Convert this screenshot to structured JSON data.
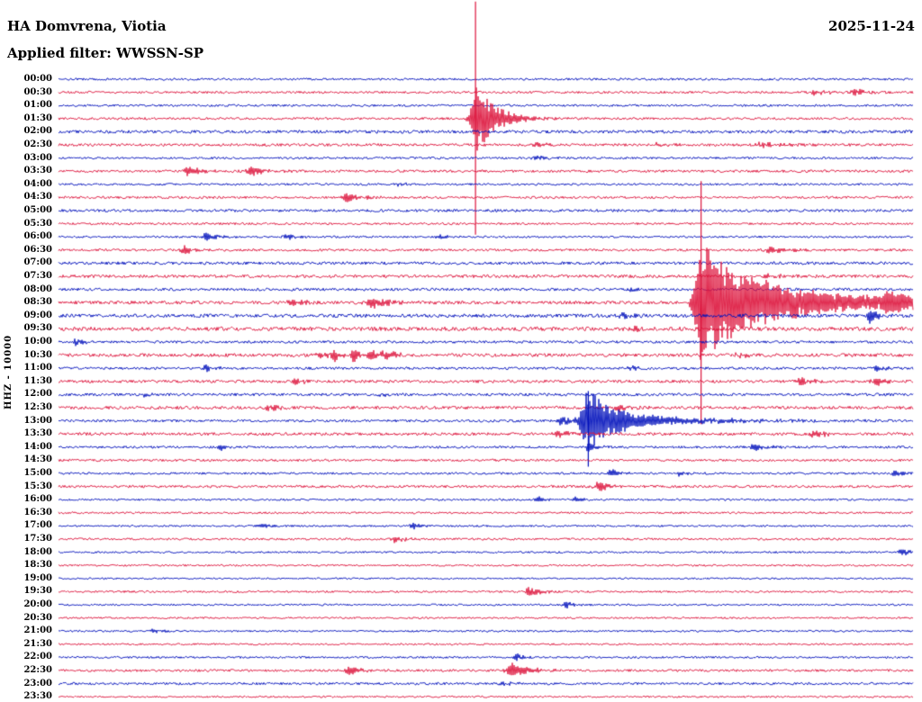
{
  "header": {
    "station_line": "HA Domvrena, Viotia",
    "date": "2025-11-24",
    "filter_line": "Applied filter: WWSSN-SP"
  },
  "chart_data": {
    "type": "line",
    "variant": "helicorder-seismogram",
    "title": "HA Domvrena, Viotia",
    "date": "2025-11-24",
    "filter": "WWSSN-SP",
    "ylabel": "HHZ - 10000",
    "minutes_per_row": 30,
    "grid": false,
    "legend": false,
    "colors": {
      "blue": "#0011bb",
      "red": "#dc143c",
      "text": "#000000"
    },
    "rows": [
      {
        "time": "00:00",
        "color": "blue",
        "noise": 1.2
      },
      {
        "time": "00:30",
        "color": "red",
        "noise": 1.3
      },
      {
        "time": "01:00",
        "color": "blue",
        "noise": 1.2
      },
      {
        "time": "01:30",
        "color": "red",
        "noise": 1.3
      },
      {
        "time": "02:00",
        "color": "blue",
        "noise": 1.7
      },
      {
        "time": "02:30",
        "color": "red",
        "noise": 1.5
      },
      {
        "time": "03:00",
        "color": "blue",
        "noise": 1.2
      },
      {
        "time": "03:30",
        "color": "red",
        "noise": 1.4
      },
      {
        "time": "04:00",
        "color": "blue",
        "noise": 1.2
      },
      {
        "time": "04:30",
        "color": "red",
        "noise": 1.3
      },
      {
        "time": "05:00",
        "color": "blue",
        "noise": 1.5
      },
      {
        "time": "05:30",
        "color": "red",
        "noise": 1.2
      },
      {
        "time": "06:00",
        "color": "blue",
        "noise": 1.1
      },
      {
        "time": "06:30",
        "color": "red",
        "noise": 1.3
      },
      {
        "time": "07:00",
        "color": "blue",
        "noise": 1.6
      },
      {
        "time": "07:30",
        "color": "red",
        "noise": 1.7
      },
      {
        "time": "08:00",
        "color": "blue",
        "noise": 1.5
      },
      {
        "time": "08:30",
        "color": "red",
        "noise": 1.8
      },
      {
        "time": "09:00",
        "color": "blue",
        "noise": 1.9
      },
      {
        "time": "09:30",
        "color": "red",
        "noise": 2.2
      },
      {
        "time": "10:00",
        "color": "blue",
        "noise": 1.4
      },
      {
        "time": "10:30",
        "color": "red",
        "noise": 1.8
      },
      {
        "time": "11:00",
        "color": "blue",
        "noise": 1.4
      },
      {
        "time": "11:30",
        "color": "red",
        "noise": 1.6
      },
      {
        "time": "12:00",
        "color": "blue",
        "noise": 1.5
      },
      {
        "time": "12:30",
        "color": "red",
        "noise": 1.7
      },
      {
        "time": "13:00",
        "color": "blue",
        "noise": 1.4
      },
      {
        "time": "13:30",
        "color": "red",
        "noise": 1.6
      },
      {
        "time": "14:00",
        "color": "blue",
        "noise": 1.3
      },
      {
        "time": "14:30",
        "color": "red",
        "noise": 1.3
      },
      {
        "time": "15:00",
        "color": "blue",
        "noise": 1.2
      },
      {
        "time": "15:30",
        "color": "red",
        "noise": 1.4
      },
      {
        "time": "16:00",
        "color": "blue",
        "noise": 1.1
      },
      {
        "time": "16:30",
        "color": "red",
        "noise": 1.1
      },
      {
        "time": "17:00",
        "color": "blue",
        "noise": 1.0
      },
      {
        "time": "17:30",
        "color": "red",
        "noise": 1.2
      },
      {
        "time": "18:00",
        "color": "blue",
        "noise": 1.0
      },
      {
        "time": "18:30",
        "color": "red",
        "noise": 1.0
      },
      {
        "time": "19:00",
        "color": "blue",
        "noise": 0.9
      },
      {
        "time": "19:30",
        "color": "red",
        "noise": 1.1
      },
      {
        "time": "20:00",
        "color": "blue",
        "noise": 1.0
      },
      {
        "time": "20:30",
        "color": "red",
        "noise": 1.0
      },
      {
        "time": "21:00",
        "color": "blue",
        "noise": 1.0
      },
      {
        "time": "21:30",
        "color": "red",
        "noise": 1.0
      },
      {
        "time": "22:00",
        "color": "blue",
        "noise": 1.1
      },
      {
        "time": "22:30",
        "color": "red",
        "noise": 1.3
      },
      {
        "time": "23:00",
        "color": "blue",
        "noise": 1.3
      },
      {
        "time": "23:30",
        "color": "red",
        "noise": 1.0
      }
    ],
    "events": [
      {
        "row": 1,
        "x": 0.885,
        "amp": 2.5,
        "attack": 8,
        "decay": 25
      },
      {
        "row": 1,
        "x": 0.934,
        "amp": 3.5,
        "attack": 5,
        "decay": 12
      },
      {
        "row": 3,
        "x": 0.488,
        "amp": 42,
        "attack": 6,
        "decay": 22
      },
      {
        "row": 5,
        "x": 0.56,
        "amp": 2.5,
        "attack": 6,
        "decay": 15
      },
      {
        "row": 5,
        "x": 0.7,
        "amp": 2,
        "attack": 6,
        "decay": 15
      },
      {
        "row": 5,
        "x": 0.825,
        "amp": 3,
        "attack": 10,
        "decay": 30
      },
      {
        "row": 6,
        "x": 0.56,
        "amp": 2,
        "attack": 8,
        "decay": 20
      },
      {
        "row": 7,
        "x": 0.152,
        "amp": 6,
        "attack": 5,
        "decay": 14
      },
      {
        "row": 7,
        "x": 0.225,
        "amp": 6.5,
        "attack": 5,
        "decay": 16
      },
      {
        "row": 8,
        "x": 0.4,
        "amp": 2,
        "attack": 6,
        "decay": 14
      },
      {
        "row": 9,
        "x": 0.337,
        "amp": 5.5,
        "attack": 5,
        "decay": 16
      },
      {
        "row": 12,
        "x": 0.173,
        "amp": 6,
        "attack": 4,
        "decay": 12
      },
      {
        "row": 12,
        "x": 0.268,
        "amp": 3,
        "attack": 5,
        "decay": 12
      },
      {
        "row": 12,
        "x": 0.447,
        "amp": 2.5,
        "attack": 5,
        "decay": 12
      },
      {
        "row": 13,
        "x": 0.147,
        "amp": 4.5,
        "attack": 4,
        "decay": 12
      },
      {
        "row": 13,
        "x": 0.836,
        "amp": 3,
        "attack": 10,
        "decay": 25
      },
      {
        "row": 15,
        "x": 0.83,
        "amp": 2.5,
        "attack": 8,
        "decay": 20
      },
      {
        "row": 16,
        "x": 0.67,
        "amp": 2,
        "attack": 5,
        "decay": 12
      },
      {
        "row": 17,
        "x": 0.273,
        "amp": 5,
        "attack": 5,
        "decay": 14
      },
      {
        "row": 17,
        "x": 0.368,
        "amp": 6,
        "attack": 8,
        "decay": 20
      },
      {
        "row": 17,
        "x": 0.752,
        "amp": 55,
        "attack": 7,
        "decay": 60
      },
      {
        "row": 17,
        "x": 0.752,
        "amp": 14,
        "attack": 10,
        "decay": 220
      },
      {
        "row": 17,
        "x": 0.972,
        "amp": 9,
        "attack": 8,
        "decay": 18
      },
      {
        "row": 18,
        "x": 0.95,
        "amp": 10,
        "attack": 3,
        "decay": 8
      },
      {
        "row": 18,
        "x": 0.66,
        "amp": 3,
        "attack": 5,
        "decay": 12
      },
      {
        "row": 19,
        "x": 0.668,
        "amp": 3,
        "attack": 6,
        "decay": 15
      },
      {
        "row": 20,
        "x": 0.02,
        "amp": 5,
        "attack": 3,
        "decay": 10
      },
      {
        "row": 21,
        "x": 0.306,
        "amp": 5,
        "attack": 4,
        "decay": 10
      },
      {
        "row": 21,
        "x": 0.322,
        "amp": 7,
        "attack": 3,
        "decay": 8
      },
      {
        "row": 21,
        "x": 0.345,
        "amp": 8,
        "attack": 3,
        "decay": 9
      },
      {
        "row": 21,
        "x": 0.366,
        "amp": 6,
        "attack": 3,
        "decay": 10
      },
      {
        "row": 21,
        "x": 0.383,
        "amp": 5,
        "attack": 4,
        "decay": 12
      },
      {
        "row": 21,
        "x": 0.795,
        "amp": 3,
        "attack": 6,
        "decay": 14
      },
      {
        "row": 22,
        "x": 0.173,
        "amp": 3.5,
        "attack": 4,
        "decay": 10
      },
      {
        "row": 22,
        "x": 0.668,
        "amp": 3,
        "attack": 4,
        "decay": 10
      },
      {
        "row": 22,
        "x": 0.957,
        "amp": 4,
        "attack": 4,
        "decay": 10
      },
      {
        "row": 23,
        "x": 0.278,
        "amp": 4,
        "attack": 5,
        "decay": 12
      },
      {
        "row": 23,
        "x": 0.868,
        "amp": 5,
        "attack": 5,
        "decay": 14
      },
      {
        "row": 23,
        "x": 0.957,
        "amp": 4,
        "attack": 6,
        "decay": 14
      },
      {
        "row": 24,
        "x": 0.1,
        "amp": 2,
        "attack": 5,
        "decay": 10
      },
      {
        "row": 24,
        "x": 0.374,
        "amp": 2.5,
        "attack": 5,
        "decay": 10
      },
      {
        "row": 25,
        "x": 0.247,
        "amp": 4,
        "attack": 5,
        "decay": 12
      },
      {
        "row": 25,
        "x": 0.657,
        "amp": 4.5,
        "attack": 5,
        "decay": 12
      },
      {
        "row": 26,
        "x": 0.62,
        "amp": 30,
        "attack": 8,
        "decay": 30
      },
      {
        "row": 26,
        "x": 0.62,
        "amp": 7,
        "attack": 10,
        "decay": 120
      },
      {
        "row": 26,
        "x": 0.59,
        "amp": 5,
        "attack": 5,
        "decay": 12
      },
      {
        "row": 27,
        "x": 0.584,
        "amp": 4,
        "attack": 5,
        "decay": 14
      },
      {
        "row": 27,
        "x": 0.884,
        "amp": 4.5,
        "attack": 5,
        "decay": 14
      },
      {
        "row": 28,
        "x": 0.19,
        "amp": 4,
        "attack": 4,
        "decay": 10
      },
      {
        "row": 28,
        "x": 0.62,
        "amp": 6,
        "attack": 3,
        "decay": 10
      },
      {
        "row": 28,
        "x": 0.815,
        "amp": 4.5,
        "attack": 5,
        "decay": 14
      },
      {
        "row": 30,
        "x": 0.647,
        "amp": 5,
        "attack": 4,
        "decay": 12
      },
      {
        "row": 30,
        "x": 0.726,
        "amp": 3,
        "attack": 4,
        "decay": 10
      },
      {
        "row": 30,
        "x": 0.979,
        "amp": 4.5,
        "attack": 4,
        "decay": 10
      },
      {
        "row": 31,
        "x": 0.631,
        "amp": 6.5,
        "attack": 5,
        "decay": 14
      },
      {
        "row": 32,
        "x": 0.562,
        "amp": 3,
        "attack": 4,
        "decay": 10
      },
      {
        "row": 32,
        "x": 0.605,
        "amp": 3,
        "attack": 4,
        "decay": 10
      },
      {
        "row": 34,
        "x": 0.236,
        "amp": 3,
        "attack": 4,
        "decay": 10
      },
      {
        "row": 34,
        "x": 0.415,
        "amp": 3.5,
        "attack": 4,
        "decay": 10
      },
      {
        "row": 35,
        "x": 0.394,
        "amp": 4,
        "attack": 5,
        "decay": 12
      },
      {
        "row": 36,
        "x": 0.988,
        "amp": 5,
        "attack": 4,
        "decay": 8
      },
      {
        "row": 39,
        "x": 0.552,
        "amp": 5,
        "attack": 6,
        "decay": 16
      },
      {
        "row": 40,
        "x": 0.594,
        "amp": 4.5,
        "attack": 4,
        "decay": 10
      },
      {
        "row": 42,
        "x": 0.11,
        "amp": 3,
        "attack": 4,
        "decay": 10
      },
      {
        "row": 44,
        "x": 0.536,
        "amp": 5.5,
        "attack": 3,
        "decay": 8
      },
      {
        "row": 45,
        "x": 0.341,
        "amp": 6,
        "attack": 5,
        "decay": 14
      },
      {
        "row": 45,
        "x": 0.531,
        "amp": 8,
        "attack": 8,
        "decay": 20
      },
      {
        "row": 46,
        "x": 0.52,
        "amp": 2,
        "attack": 6,
        "decay": 14
      }
    ],
    "vspikes": [
      {
        "row": 3,
        "x": 0.488,
        "up": 130,
        "down": 129
      },
      {
        "row": 17,
        "x": 0.752,
        "up": 135,
        "down": 135
      },
      {
        "row": 26,
        "x": 0.62,
        "up": 33,
        "down": 51
      }
    ]
  }
}
